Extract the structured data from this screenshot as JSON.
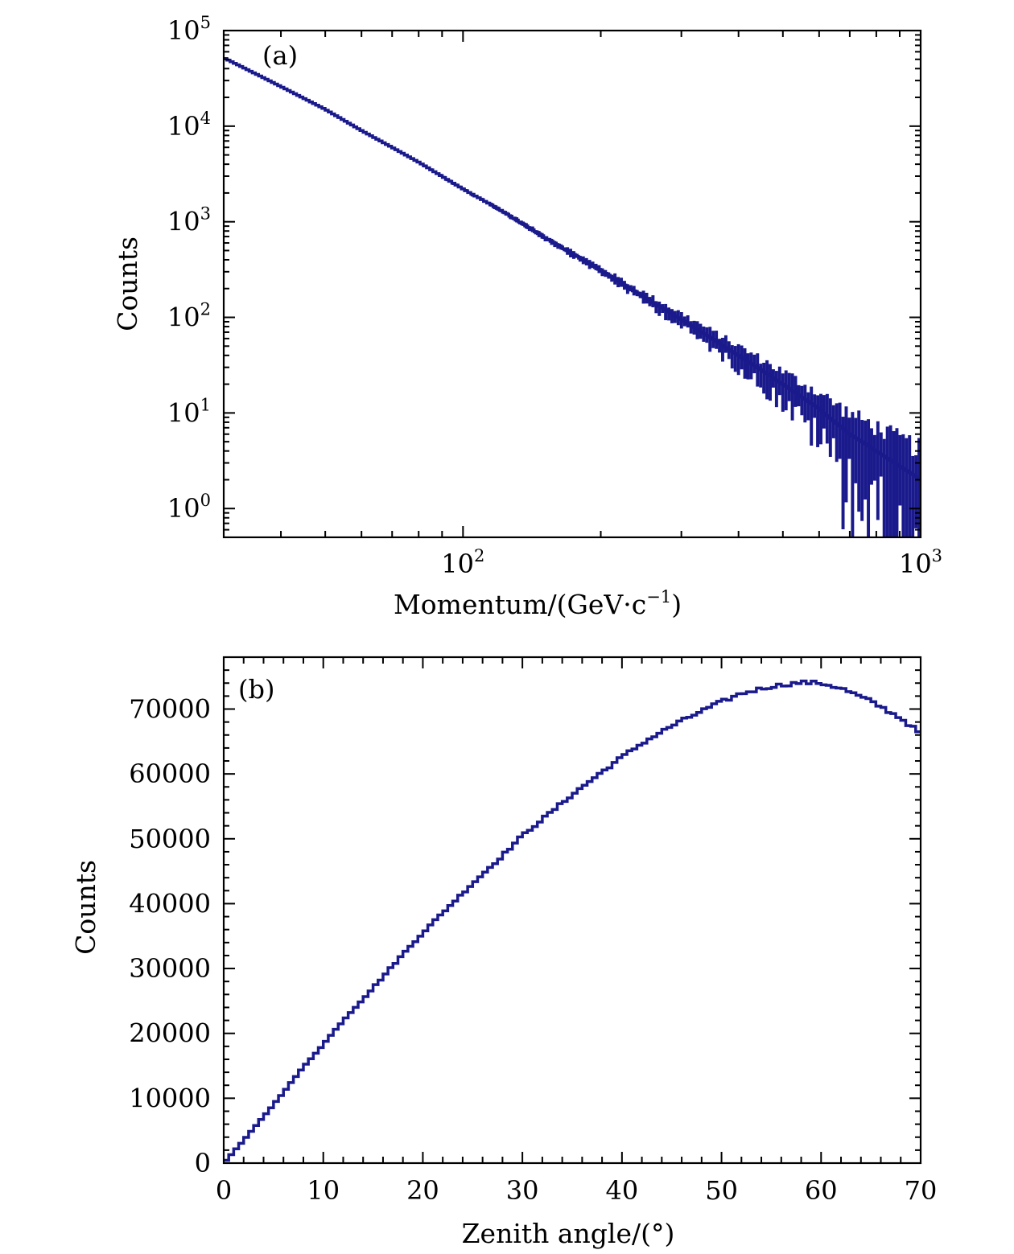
{
  "chart_data": [
    {
      "type": "histogram",
      "panel_label": "(a)",
      "xlabel": "Momentum/(GeV·c⁻¹)",
      "xlabel_main": "Momentum/(GeV·c",
      "xlabel_exp": "−1",
      "xlabel_close": ")",
      "ylabel": "Counts",
      "x_scale": "log",
      "y_scale": "log",
      "xlim": [
        30,
        1000
      ],
      "ylim": [
        0.5,
        100000
      ],
      "x_ticks": [
        {
          "base": "10",
          "exp": "2"
        },
        {
          "base": "10",
          "exp": "3"
        }
      ],
      "y_ticks": [
        {
          "base": "10",
          "exp": "0"
        },
        {
          "base": "10",
          "exp": "1"
        },
        {
          "base": "10",
          "exp": "2"
        },
        {
          "base": "10",
          "exp": "3"
        },
        {
          "base": "10",
          "exp": "4"
        },
        {
          "base": "10",
          "exp": "5"
        }
      ],
      "x": [
        30,
        40,
        50,
        60,
        70,
        80,
        100,
        120,
        150,
        200,
        250,
        300,
        400,
        500,
        600,
        700,
        800,
        1000
      ],
      "y": [
        52000,
        26000,
        15000,
        9000,
        6000,
        4200,
        2200,
        1350,
        700,
        310,
        160,
        95,
        40,
        20,
        11,
        6,
        4,
        2
      ],
      "line_color": "#1a1a8c",
      "grid": false
    },
    {
      "type": "histogram",
      "panel_label": "(b)",
      "xlabel": "Zenith angle/(°)",
      "ylabel": "Counts",
      "xlim": [
        0,
        70
      ],
      "ylim": [
        0,
        78000
      ],
      "x_ticks": [
        "0",
        "10",
        "20",
        "30",
        "40",
        "50",
        "60",
        "70"
      ],
      "y_ticks": [
        "0",
        "10000",
        "20000",
        "30000",
        "40000",
        "50000",
        "60000",
        "70000"
      ],
      "x": [
        0,
        2,
        5,
        8,
        10,
        12,
        15,
        18,
        20,
        22,
        25,
        28,
        30,
        32,
        35,
        38,
        40,
        42,
        45,
        48,
        50,
        52,
        55,
        58,
        60,
        62,
        65,
        68,
        70
      ],
      "y": [
        0,
        3500,
        9000,
        14800,
        18300,
        22000,
        27000,
        32200,
        35500,
        38600,
        43100,
        47400,
        50500,
        53000,
        56800,
        60300,
        62600,
        64700,
        67400,
        69700,
        71100,
        72400,
        73500,
        74100,
        74000,
        73200,
        71200,
        68600,
        66200
      ],
      "line_color": "#1a1a8c",
      "grid": false
    }
  ]
}
